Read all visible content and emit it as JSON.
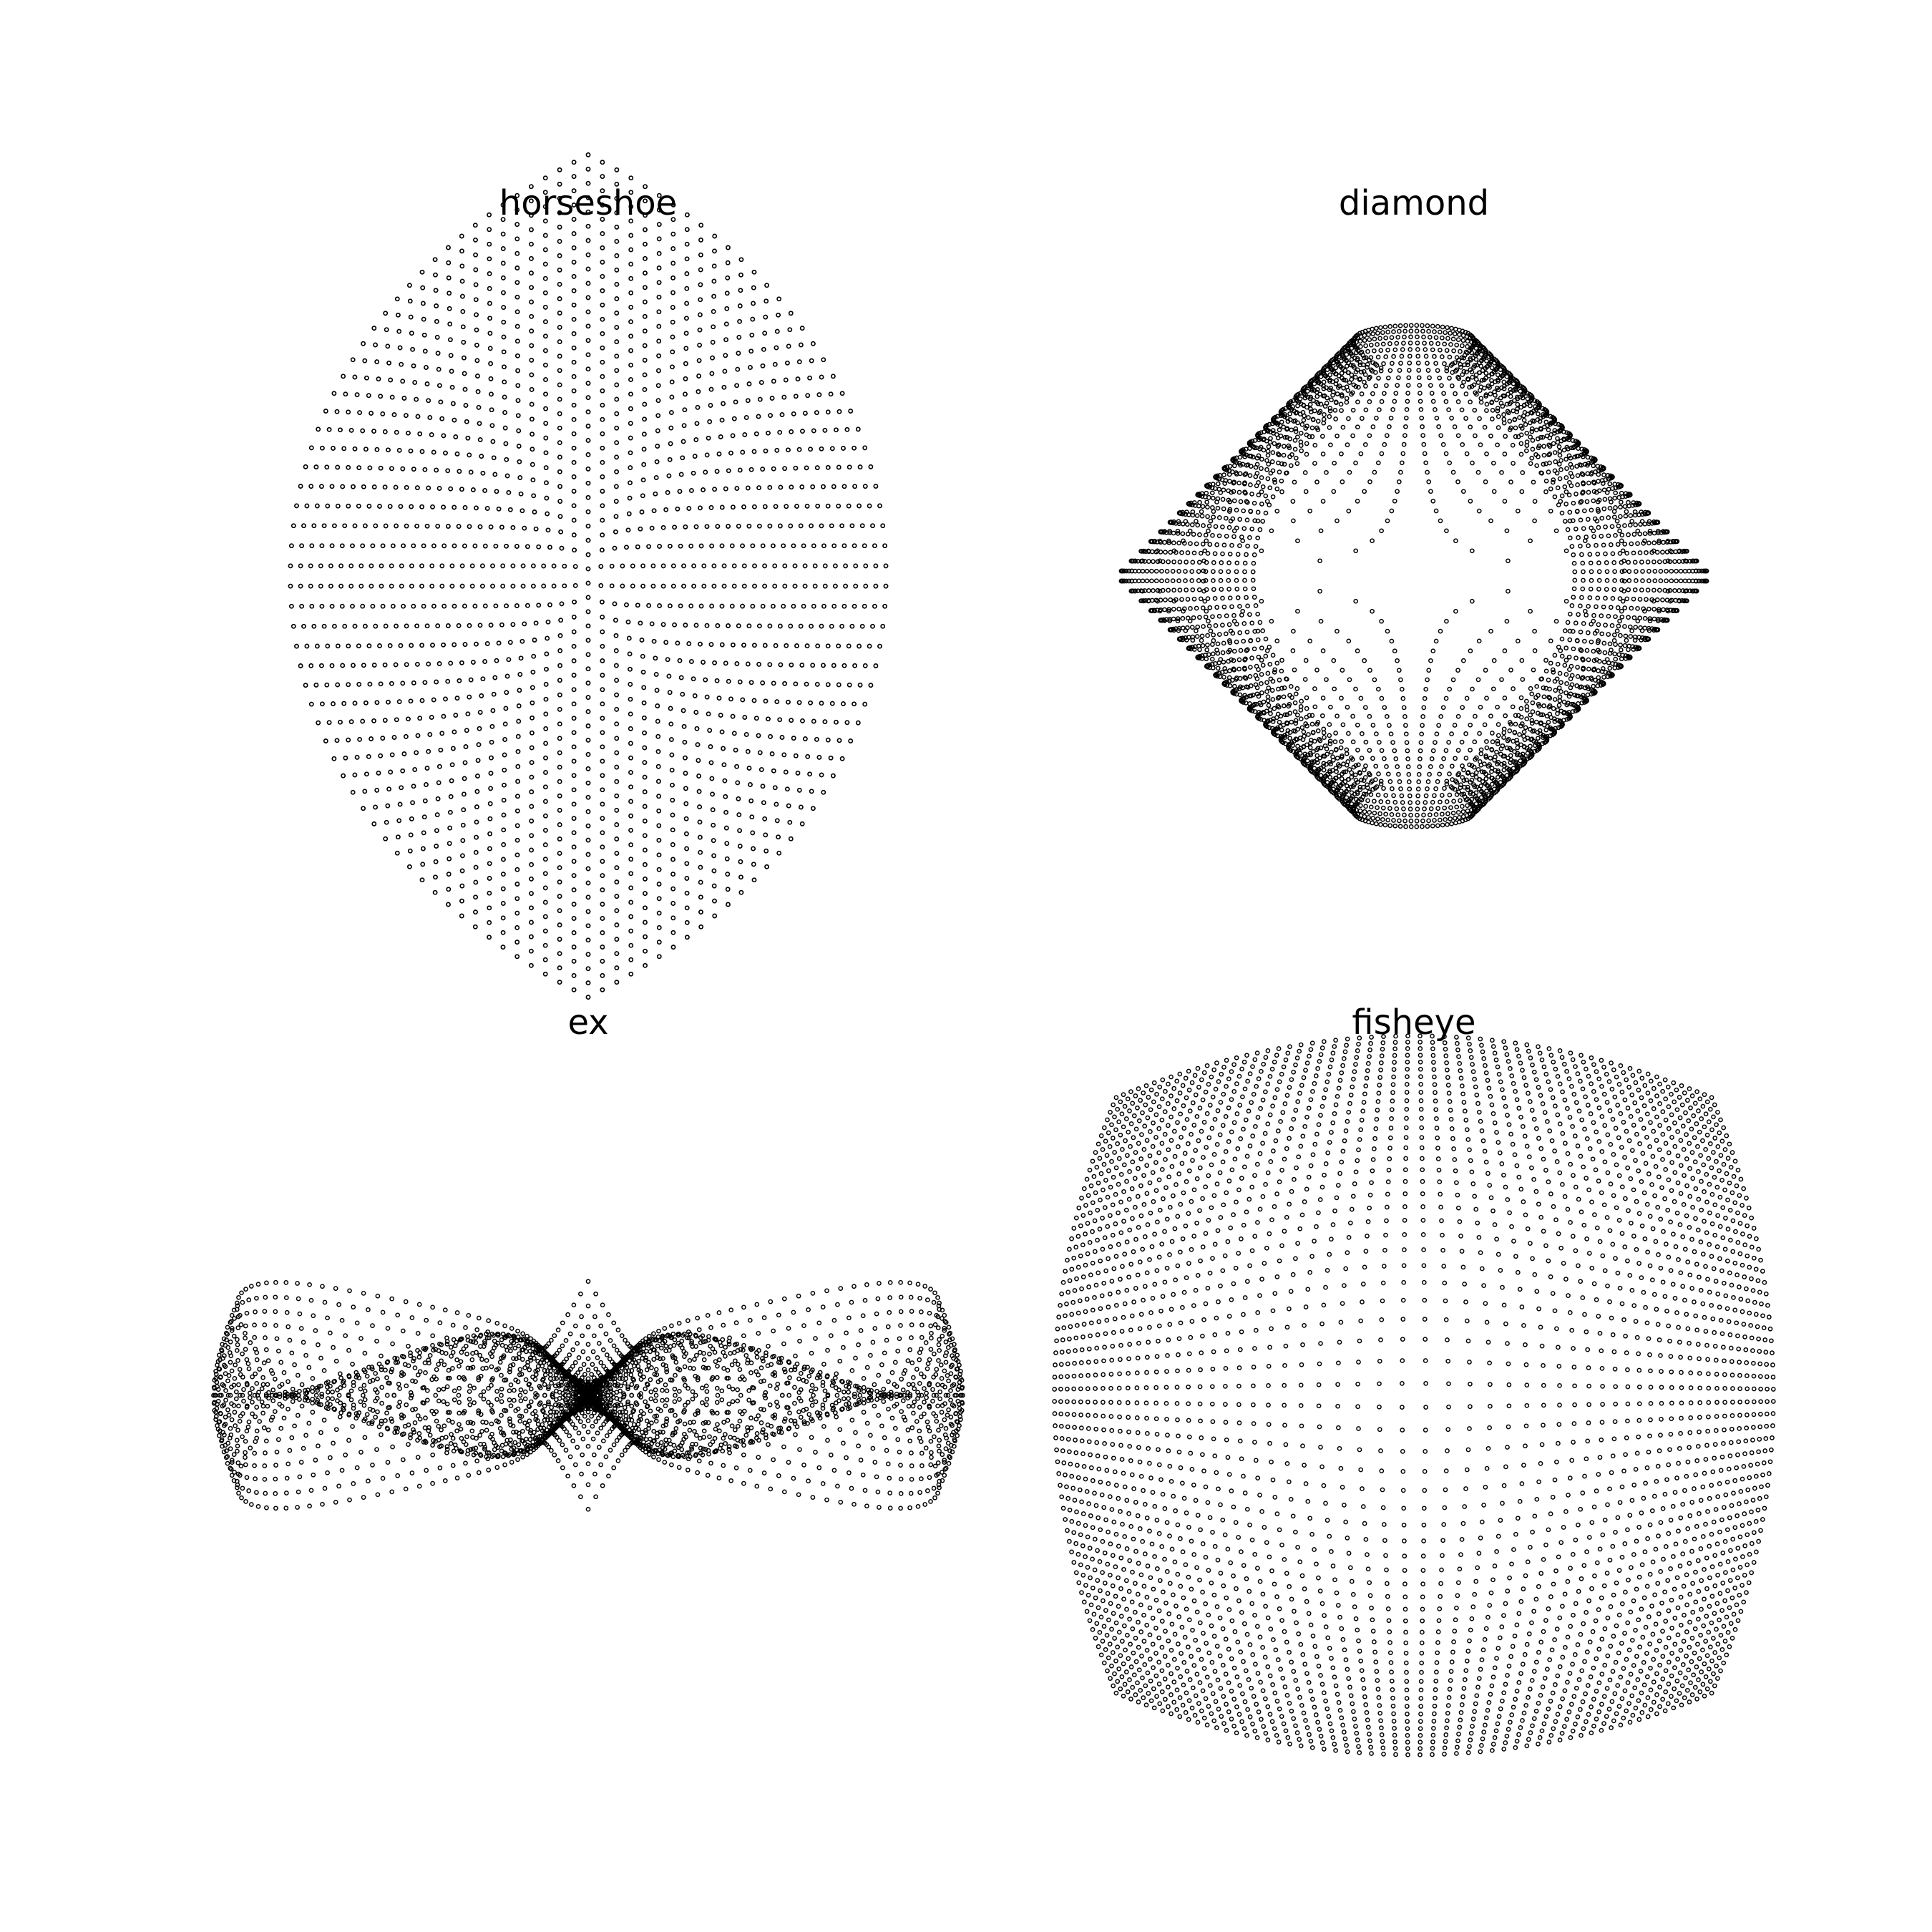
{
  "chart_data": [
    {
      "type": "scatter",
      "title": "horseshoe",
      "variation": "horseshoe",
      "input_grid": {
        "x_range": [
          -1,
          1
        ],
        "y_range": [
          -1,
          1
        ],
        "n": 60
      },
      "xlim": [
        -1.05,
        1.05
      ],
      "ylim": [
        -1.05,
        1.05
      ],
      "axes_visible": false,
      "grid": false,
      "marker": "open-circle",
      "color": "#000000"
    },
    {
      "type": "scatter",
      "title": "diamond",
      "variation": "diamond",
      "input_grid": {
        "x_range": [
          -1,
          1
        ],
        "y_range": [
          -1,
          1
        ],
        "n": 60
      },
      "xlim": [
        -1.05,
        1.05
      ],
      "ylim": [
        -1.05,
        1.05
      ],
      "axes_visible": false,
      "grid": false,
      "marker": "open-circle",
      "color": "#000000"
    },
    {
      "type": "scatter",
      "title": "ex",
      "variation": "ex",
      "input_grid": {
        "x_range": [
          -1,
          1
        ],
        "y_range": [
          -1,
          1
        ],
        "n": 60
      },
      "xlim": [
        -1.58,
        1.58
      ],
      "ylim": [
        -1.58,
        1.58
      ],
      "axes_visible": false,
      "grid": false,
      "marker": "open-circle",
      "color": "#000000"
    },
    {
      "type": "scatter",
      "title": "fisheye",
      "variation": "fisheye",
      "input_grid": {
        "x_range": [
          -1,
          1
        ],
        "y_range": [
          -1,
          1
        ],
        "n": 60
      },
      "xlim": [
        -0.87,
        0.87
      ],
      "ylim": [
        -0.87,
        0.87
      ],
      "axes_visible": false,
      "grid": false,
      "marker": "open-circle",
      "color": "#000000"
    }
  ]
}
